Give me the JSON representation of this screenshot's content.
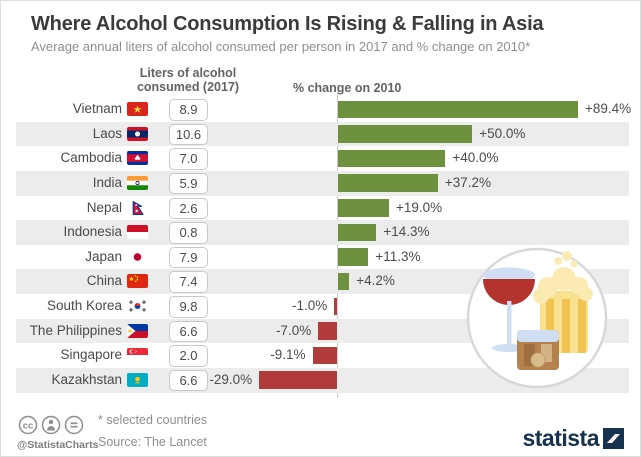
{
  "header": {
    "title": "Where Alcohol Consumption Is Rising & Falling in Asia",
    "subtitle": "Average annual liters of alcohol consumed per person in 2017 and % change on 2010*"
  },
  "columns": {
    "liters_header_line1": "Liters of alcohol",
    "liters_header_line2": "consumed (2017)",
    "pct_header": "% change on 2010"
  },
  "chart_data": {
    "type": "bar",
    "orientation": "horizontal",
    "title": "Where Alcohol Consumption Is Rising & Falling in Asia",
    "subtitle": "Average annual liters of alcohol consumed per person in 2017 and % change on 2010*",
    "categories": [
      "Vietnam",
      "Laos",
      "Cambodia",
      "India",
      "Nepal",
      "Indonesia",
      "Japan",
      "China",
      "South Korea",
      "The Philippines",
      "Singapore",
      "Kazakhstan"
    ],
    "series": [
      {
        "name": "Liters of alcohol consumed (2017)",
        "values": [
          8.9,
          10.6,
          7.0,
          5.9,
          2.6,
          0.8,
          7.9,
          7.4,
          9.8,
          6.6,
          2.0,
          6.6
        ]
      },
      {
        "name": "% change on 2010",
        "values": [
          89.4,
          50.0,
          40.0,
          37.2,
          19.0,
          14.3,
          11.3,
          4.2,
          -1.0,
          -7.0,
          -9.1,
          -29.0
        ]
      }
    ],
    "xlim": [
      -29.0,
      89.4
    ],
    "grid": false,
    "positive_color": "#6e9140",
    "negative_color": "#b23c3c",
    "value_labels": [
      "+89.4%",
      "+50.0%",
      "+40.0%",
      "+37.2%",
      "+19.0%",
      "+14.3%",
      "+11.3%",
      "+4.2%",
      "-1.0%",
      "-7.0%",
      "-9.1%",
      "-29.0%"
    ]
  },
  "rows": [
    {
      "country": "Vietnam",
      "flag": "vietnam",
      "flag_icon": "vietnam-flag-icon",
      "liters": "8.9",
      "pct": "+89.4%",
      "pct_value": 89.4
    },
    {
      "country": "Laos",
      "flag": "laos",
      "flag_icon": "laos-flag-icon",
      "liters": "10.6",
      "pct": "+50.0%",
      "pct_value": 50.0
    },
    {
      "country": "Cambodia",
      "flag": "cambodia",
      "flag_icon": "cambodia-flag-icon",
      "liters": "7.0",
      "pct": "+40.0%",
      "pct_value": 40.0
    },
    {
      "country": "India",
      "flag": "india",
      "flag_icon": "india-flag-icon",
      "liters": "5.9",
      "pct": "+37.2%",
      "pct_value": 37.2
    },
    {
      "country": "Nepal",
      "flag": "nepal",
      "flag_icon": "nepal-flag-icon",
      "liters": "2.6",
      "pct": "+19.0%",
      "pct_value": 19.0
    },
    {
      "country": "Indonesia",
      "flag": "indonesia",
      "flag_icon": "indonesia-flag-icon",
      "liters": "0.8",
      "pct": "+14.3%",
      "pct_value": 14.3
    },
    {
      "country": "Japan",
      "flag": "japan",
      "flag_icon": "japan-flag-icon",
      "liters": "7.9",
      "pct": "+11.3%",
      "pct_value": 11.3
    },
    {
      "country": "China",
      "flag": "china",
      "flag_icon": "china-flag-icon",
      "liters": "7.4",
      "pct": "+4.2%",
      "pct_value": 4.2
    },
    {
      "country": "South Korea",
      "flag": "south-korea",
      "flag_icon": "south-korea-flag-icon",
      "liters": "9.8",
      "pct": "-1.0%",
      "pct_value": -1.0
    },
    {
      "country": "The Philippines",
      "flag": "philippines",
      "flag_icon": "philippines-flag-icon",
      "liters": "6.6",
      "pct": "-7.0%",
      "pct_value": -7.0
    },
    {
      "country": "Singapore",
      "flag": "singapore",
      "flag_icon": "singapore-flag-icon",
      "liters": "2.0",
      "pct": "-9.1%",
      "pct_value": -9.1
    },
    {
      "country": "Kazakhstan",
      "flag": "kazakhstan",
      "flag_icon": "kazakhstan-flag-icon",
      "liters": "6.6",
      "pct": "-29.0%",
      "pct_value": -29.0
    }
  ],
  "footer": {
    "footnote": "* selected countries",
    "source": "Source: The Lancet",
    "handle": "@StatistaCharts",
    "logo_text": "statista",
    "license_icons": [
      "cc-icon",
      "attribution-person-icon",
      "equals-icon"
    ]
  },
  "colors": {
    "positive_bar": "#6e9140",
    "negative_bar": "#b23c3c",
    "row_stripe": "#ececec",
    "axis_line": "#cdcdcd",
    "title_text": "#3b3b3b",
    "subtitle_text": "#8f8f8f",
    "logo_navy": "#16324f"
  }
}
